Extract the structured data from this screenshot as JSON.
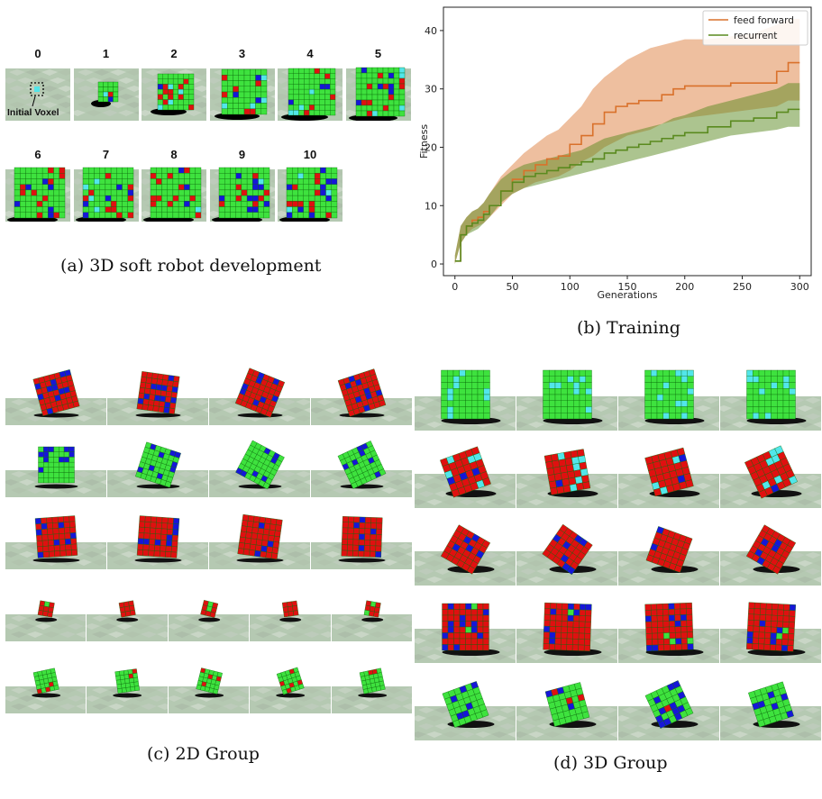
{
  "panel_a": {
    "stage_labels": [
      "0",
      "1",
      "2",
      "3",
      "4",
      "5",
      "6",
      "7",
      "8",
      "9",
      "10"
    ],
    "annotation": "Initial Voxel",
    "caption": "(a) 3D soft robot development"
  },
  "panel_b": {
    "caption": "(b) Training"
  },
  "panel_c": {
    "caption": "(c) 2D Group"
  },
  "panel_d": {
    "caption": "(d) 3D Group"
  },
  "colors": {
    "feed_forward": "#d9712b",
    "recurrent": "#5a8a1f",
    "voxel_green": "#3ee23e",
    "voxel_red": "#e01010",
    "voxel_blue": "#1616d8",
    "voxel_cyan": "#52e6ea",
    "ground": "#b5c9b2"
  },
  "chart_data": {
    "type": "line",
    "xlabel": "Generations",
    "ylabel": "Fitness",
    "xlim": [
      -10,
      310
    ],
    "ylim": [
      -2,
      44
    ],
    "xticks": [
      0,
      50,
      100,
      150,
      200,
      250,
      300
    ],
    "yticks": [
      0,
      10,
      20,
      30,
      40
    ],
    "legend": "top-right",
    "series": [
      {
        "name": "feed forward",
        "x": [
          0,
          5,
          10,
          15,
          20,
          25,
          30,
          40,
          50,
          60,
          70,
          80,
          90,
          100,
          110,
          120,
          130,
          140,
          150,
          160,
          170,
          180,
          190,
          200,
          220,
          240,
          260,
          280,
          290,
          300
        ],
        "y": [
          0.5,
          5,
          6.5,
          7.5,
          8,
          9,
          10,
          12.5,
          14.5,
          16,
          17,
          18,
          18.5,
          20.5,
          22,
          24,
          26,
          27,
          27.5,
          28,
          28,
          29,
          30,
          30.5,
          30.5,
          31,
          31,
          33,
          34.5,
          34.5
        ],
        "lower": [
          0,
          3.5,
          5,
          6,
          6.5,
          7,
          8,
          10,
          12,
          13,
          14,
          14.5,
          15,
          16,
          17.5,
          18.5,
          20,
          21,
          22,
          22.5,
          23,
          24,
          24.5,
          25,
          25.5,
          26,
          26.5,
          27,
          28,
          28
        ],
        "upper": [
          1.5,
          6.5,
          8,
          9,
          9.5,
          10.5,
          12,
          15,
          17,
          19,
          20.5,
          22,
          23,
          25,
          27,
          30,
          32,
          33.5,
          35,
          36,
          37,
          37.5,
          38,
          38.5,
          38.5,
          39,
          39.5,
          41,
          42,
          42
        ]
      },
      {
        "name": "recurrent",
        "x": [
          0,
          5,
          10,
          15,
          20,
          25,
          30,
          40,
          50,
          60,
          70,
          80,
          90,
          100,
          110,
          120,
          130,
          140,
          150,
          160,
          170,
          180,
          190,
          200,
          220,
          240,
          260,
          280,
          290,
          300
        ],
        "y": [
          0.5,
          5,
          6.5,
          7,
          7.5,
          8.5,
          10,
          12.5,
          14,
          15,
          15.5,
          16,
          16.5,
          17,
          17.5,
          18,
          19,
          19.5,
          20,
          20.5,
          21,
          21.5,
          22,
          22.5,
          23.5,
          24.5,
          25,
          26,
          26.5,
          26.5
        ],
        "lower": [
          0,
          3.5,
          5,
          5.5,
          6,
          7,
          8,
          10.5,
          12,
          13,
          13.5,
          14,
          14.5,
          15,
          15.5,
          16,
          16.5,
          17,
          17.5,
          18,
          18.5,
          19,
          19.5,
          20,
          21,
          22,
          22.5,
          23,
          23.5,
          23.5
        ],
        "upper": [
          1.5,
          6.5,
          8,
          9,
          9.5,
          10.5,
          12,
          14.5,
          16,
          17,
          17.5,
          18,
          18.5,
          19,
          19.5,
          20.5,
          21.5,
          22,
          22.5,
          23,
          23.5,
          24,
          25,
          25.5,
          27,
          28,
          29,
          30,
          31,
          31
        ]
      }
    ]
  }
}
